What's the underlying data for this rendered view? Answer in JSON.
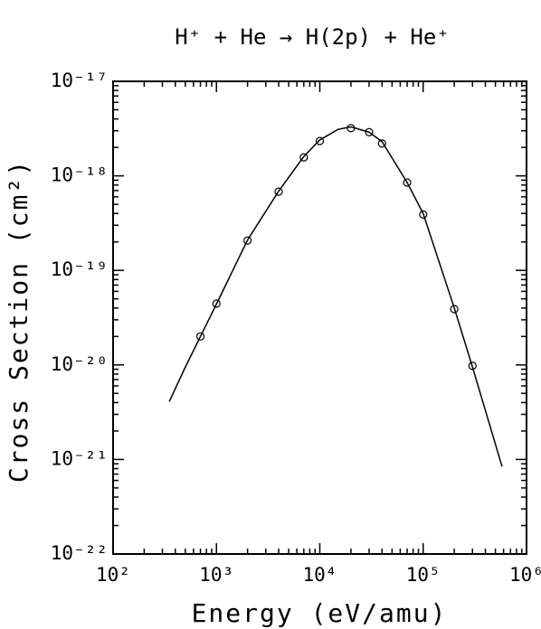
{
  "chart_data": {
    "type": "scatter",
    "title": "H⁺ + He → H(2p) + He⁺",
    "x_label": "Energy (eV/amu)",
    "y_label": "Cross Section (cm²)",
    "xscale": "log",
    "yscale": "log",
    "xlim": [
      100,
      1000000
    ],
    "ylim": [
      1e-22,
      1e-17
    ],
    "xticks": [
      {
        "value": 100,
        "label": "10²"
      },
      {
        "value": 1000,
        "label": "10³"
      },
      {
        "value": 10000,
        "label": "10⁴"
      },
      {
        "value": 100000,
        "label": "10⁵"
      },
      {
        "value": 1000000,
        "label": "10⁶"
      }
    ],
    "yticks": [
      {
        "value": 1e-22,
        "label": "10⁻²²"
      },
      {
        "value": 1e-21,
        "label": "10⁻²¹"
      },
      {
        "value": 1e-20,
        "label": "10⁻²⁰"
      },
      {
        "value": 1e-19,
        "label": "10⁻¹⁹"
      },
      {
        "value": 1e-18,
        "label": "10⁻¹⁸"
      },
      {
        "value": 1e-17,
        "label": "10⁻¹⁷"
      }
    ],
    "series": [
      {
        "type": "line",
        "color": "#000000",
        "x": [
          350,
          500,
          700,
          1000,
          2000,
          4000,
          7000,
          10000,
          15000,
          20000,
          30000,
          40000,
          70000,
          100000,
          200000,
          300000,
          400000,
          580000
        ],
        "values": [
          4.1e-21,
          9.5e-21,
          2e-20,
          4.4e-20,
          2.1e-19,
          6.9e-19,
          1.6e-18,
          2.4e-18,
          3.1e-18,
          3.3e-18,
          2.9e-18,
          2.3e-18,
          8.5e-19,
          4e-19,
          4e-20,
          9.5e-21,
          3.3e-21,
          8.4e-22
        ]
      },
      {
        "type": "scatter",
        "color": "#000000",
        "x": [
          700,
          1000,
          2000,
          4000,
          7000,
          10000,
          20000,
          30000,
          40000,
          70000,
          100000,
          200000,
          300000
        ],
        "values": [
          2e-20,
          4.45e-20,
          2.07e-19,
          6.8e-19,
          1.57e-18,
          2.34e-18,
          3.2e-18,
          2.9e-18,
          2.2e-18,
          8.5e-19,
          3.9e-19,
          3.9e-20,
          9.8e-21
        ]
      }
    ]
  }
}
